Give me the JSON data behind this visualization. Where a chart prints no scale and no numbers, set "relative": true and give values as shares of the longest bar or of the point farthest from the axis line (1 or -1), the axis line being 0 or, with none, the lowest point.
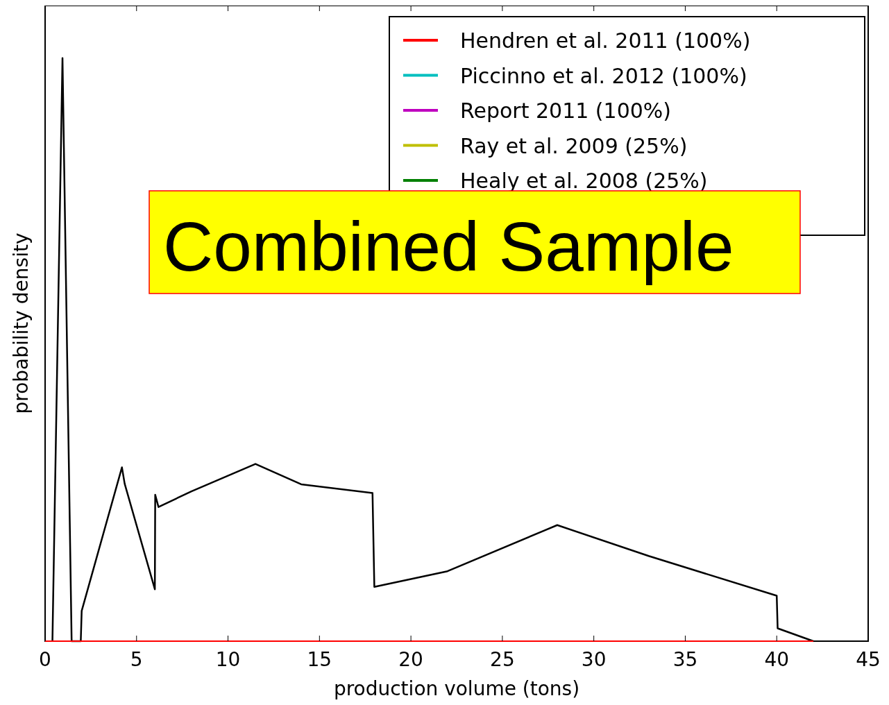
{
  "chart_data": {
    "type": "line",
    "relative": true,
    "xlabel": "production volume (tons)",
    "ylabel": "probability density",
    "xlim": [
      0,
      45
    ],
    "xticks": [
      0,
      5,
      10,
      15,
      20,
      25,
      30,
      35,
      40,
      45
    ],
    "legend": "top right",
    "grid": false,
    "annotations": [
      "Combined Sample"
    ],
    "series": [
      {
        "color": "#000000",
        "x": [
          0.4,
          0.95,
          1.45,
          1.95,
          2,
          4.2,
          4.35,
          6,
          6.02,
          6.2,
          8,
          11.5,
          14,
          17.9,
          18,
          22,
          28,
          33,
          40,
          40.05,
          42
        ],
        "values": [
          0,
          1,
          0,
          0,
          0.052,
          0.298,
          0.27,
          0.089,
          0.251,
          0.23,
          0.257,
          0.304,
          0.269,
          0.254,
          0.093,
          0.12,
          0.199,
          0.146,
          0.078,
          0.022,
          0
        ]
      },
      {
        "name": "Hendren et al. 2011 (100%)",
        "color": "#ff0000",
        "x": [
          0,
          42
        ],
        "values": [
          0,
          0
        ]
      },
      {
        "name": "Piccinno et al. 2012 (100%)",
        "color": "#00bfbf"
      },
      {
        "name": "Report 2011 (100%)",
        "color": "#bf00bf"
      },
      {
        "name": "Ray et al. 2009 (25%)",
        "color": "#bfbf00"
      },
      {
        "name": "Healy et al. 2008 (25%)",
        "color": "#008000"
      }
    ]
  }
}
